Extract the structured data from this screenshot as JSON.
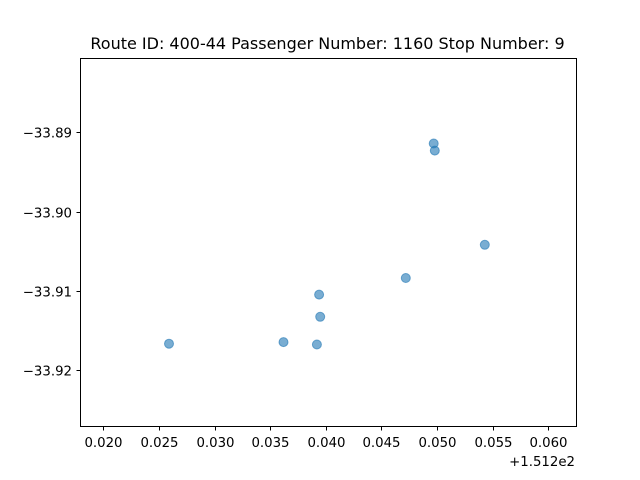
{
  "chart_data": {
    "type": "scatter",
    "title": "Route ID: 400-44  Passenger Number: 1160  Stop Number: 9",
    "xlabel": "",
    "ylabel": "",
    "x_offset_label": "+1.512e2",
    "xlim": [
      151.2179,
      151.2625
    ],
    "ylim": [
      -33.9271,
      -33.8806
    ],
    "xticks": [
      {
        "value": 151.22,
        "label": "0.020"
      },
      {
        "value": 151.225,
        "label": "0.025"
      },
      {
        "value": 151.23,
        "label": "0.030"
      },
      {
        "value": 151.235,
        "label": "0.035"
      },
      {
        "value": 151.24,
        "label": "0.040"
      },
      {
        "value": 151.245,
        "label": "0.045"
      },
      {
        "value": 151.25,
        "label": "0.050"
      },
      {
        "value": 151.255,
        "label": "0.055"
      },
      {
        "value": 151.26,
        "label": "0.060"
      }
    ],
    "yticks": [
      {
        "value": -33.89,
        "label": "−33.89"
      },
      {
        "value": -33.9,
        "label": "−33.90"
      },
      {
        "value": -33.91,
        "label": "−33.91"
      },
      {
        "value": -33.92,
        "label": "−33.92"
      }
    ],
    "grid": false,
    "point_color": "#1f77b4",
    "point_alpha": 0.6,
    "points": [
      {
        "x": 151.2259,
        "y": -33.9167
      },
      {
        "x": 151.2362,
        "y": -33.9165
      },
      {
        "x": 151.2392,
        "y": -33.9168
      },
      {
        "x": 151.2394,
        "y": -33.9105
      },
      {
        "x": 151.2395,
        "y": -33.9133
      },
      {
        "x": 151.2472,
        "y": -33.9084
      },
      {
        "x": 151.2497,
        "y": -33.8914
      },
      {
        "x": 151.2498,
        "y": -33.8923
      },
      {
        "x": 151.2543,
        "y": -33.9042
      }
    ]
  }
}
